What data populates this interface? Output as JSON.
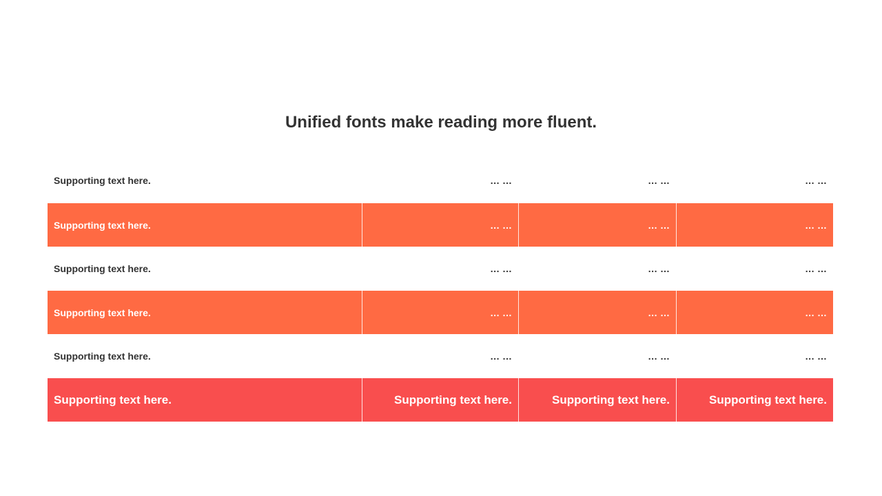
{
  "title": "Unified fonts make reading more fluent.",
  "colors": {
    "orange": "#FF6A43",
    "red": "#F94E4E",
    "text": "#333333"
  },
  "rows": [
    {
      "style": "white",
      "cells": [
        "Supporting text here.",
        "… …",
        "… …",
        "… …"
      ]
    },
    {
      "style": "orange",
      "cells": [
        "Supporting text here.",
        "… …",
        "… …",
        "… …"
      ]
    },
    {
      "style": "white",
      "cells": [
        "Supporting text here.",
        "… …",
        "… …",
        "… …"
      ]
    },
    {
      "style": "orange",
      "cells": [
        "Supporting text here.",
        "… …",
        "… …",
        "… …"
      ]
    },
    {
      "style": "white",
      "cells": [
        "Supporting text here.",
        "… …",
        "… …",
        "… …"
      ]
    },
    {
      "style": "red",
      "cells": [
        "Supporting text here.",
        "Supporting text here.",
        "Supporting text here.",
        "Supporting text here."
      ]
    }
  ]
}
